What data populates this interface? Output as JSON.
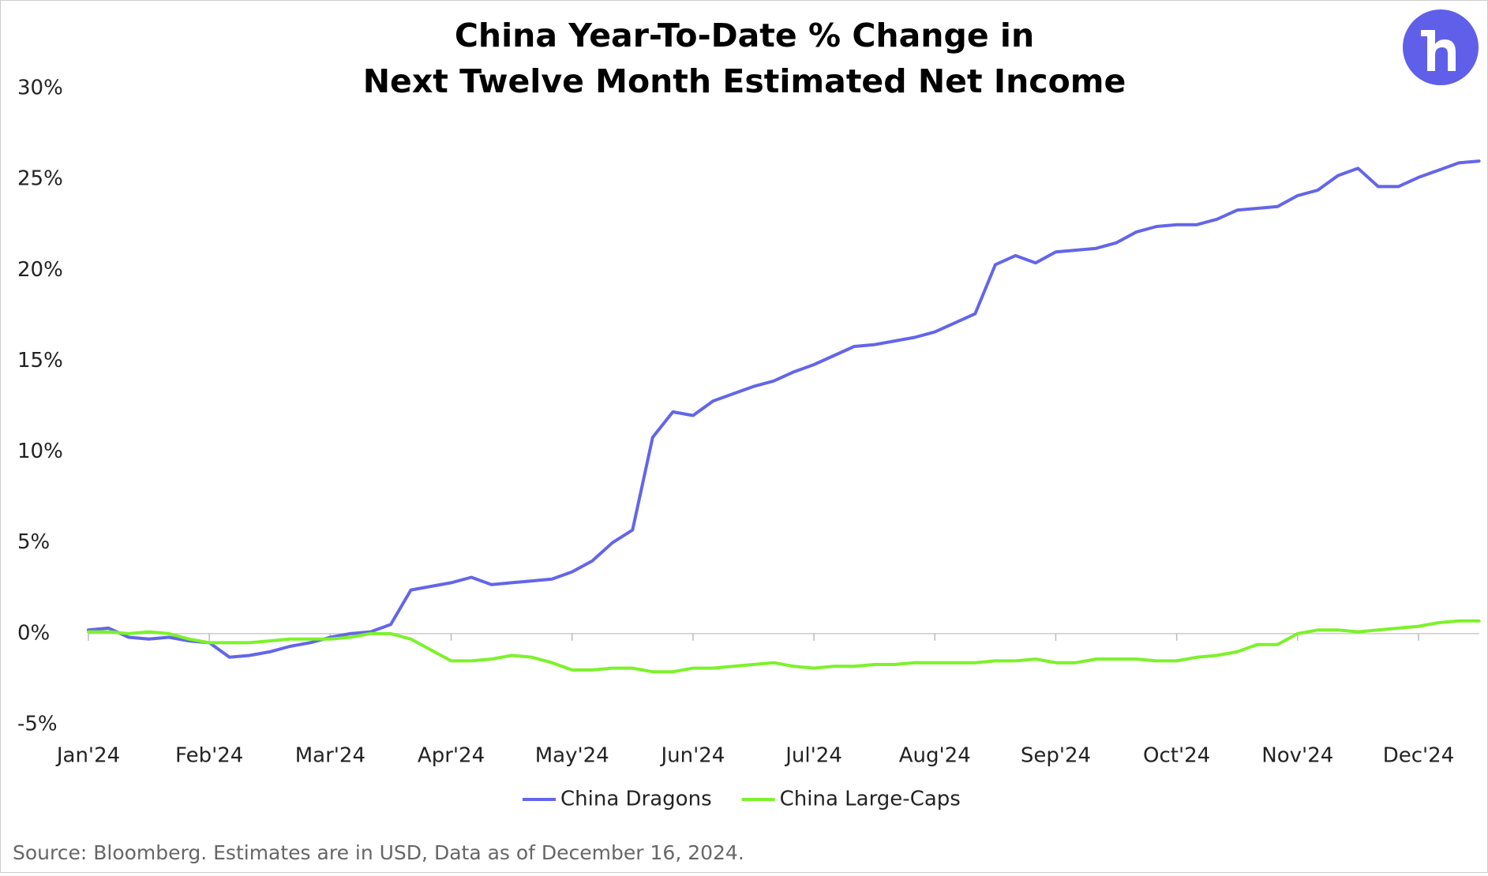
{
  "chart_data": {
    "type": "line",
    "title": [
      "China Year-To-Date % Change in",
      "Next Twelve Month Estimated Net Income"
    ],
    "source": "Source: Bloomberg. Estimates are in USD, Data as of December 16, 2024.",
    "categories": [
      "Jan'24",
      null,
      null,
      null,
      null,
      null,
      "Feb'24",
      null,
      null,
      null,
      null,
      null,
      "Mar'24",
      null,
      null,
      null,
      null,
      null,
      "Apr'24",
      null,
      null,
      null,
      null,
      null,
      "May'24",
      null,
      null,
      null,
      null,
      null,
      "Jun'24",
      null,
      null,
      null,
      null,
      null,
      "Jul'24",
      null,
      null,
      null,
      null,
      null,
      "Aug'24",
      null,
      null,
      null,
      null,
      null,
      "Sep'24",
      null,
      null,
      null,
      null,
      null,
      "Oct'24",
      null,
      null,
      null,
      null,
      null,
      "Nov'24",
      null,
      null,
      null,
      null,
      null,
      "Dec'24",
      null,
      null,
      null
    ],
    "series": [
      {
        "name": "China Dragons",
        "color": "#6366e8",
        "values": [
          0.2,
          0.3,
          -0.2,
          -0.3,
          -0.2,
          -0.4,
          -0.5,
          -1.3,
          -1.2,
          -1.0,
          -0.7,
          -0.5,
          -0.2,
          0.0,
          0.1,
          0.5,
          2.4,
          2.6,
          2.8,
          3.1,
          2.7,
          2.8,
          2.9,
          3.0,
          3.4,
          4.0,
          5.0,
          5.7,
          10.8,
          12.2,
          12.0,
          12.8,
          13.2,
          13.6,
          13.9,
          14.4,
          14.8,
          15.3,
          15.8,
          15.9,
          16.1,
          16.3,
          16.6,
          17.1,
          17.6,
          20.3,
          20.8,
          20.4,
          21.0,
          21.1,
          21.2,
          21.5,
          22.1,
          22.4,
          22.5,
          22.5,
          22.8,
          23.3,
          23.4,
          23.5,
          24.1,
          24.4,
          25.2,
          25.6,
          24.6,
          24.6,
          25.1,
          25.5,
          25.9,
          26.0
        ]
      },
      {
        "name": "China Large-Caps",
        "color": "#7cf22a",
        "values": [
          0.1,
          0.1,
          0.0,
          0.1,
          0.0,
          -0.3,
          -0.5,
          -0.5,
          -0.5,
          -0.4,
          -0.3,
          -0.3,
          -0.3,
          -0.2,
          0.0,
          0.0,
          -0.3,
          -0.9,
          -1.5,
          -1.5,
          -1.4,
          -1.2,
          -1.3,
          -1.6,
          -2.0,
          -2.0,
          -1.9,
          -1.9,
          -2.1,
          -2.1,
          -1.9,
          -1.9,
          -1.8,
          -1.7,
          -1.6,
          -1.8,
          -1.9,
          -1.8,
          -1.8,
          -1.7,
          -1.7,
          -1.6,
          -1.6,
          -1.6,
          -1.6,
          -1.5,
          -1.5,
          -1.4,
          -1.6,
          -1.6,
          -1.4,
          -1.4,
          -1.4,
          -1.5,
          -1.5,
          -1.3,
          -1.2,
          -1.0,
          -0.6,
          -0.6,
          0.0,
          0.2,
          0.2,
          0.1,
          0.2,
          0.3,
          0.4,
          0.6,
          0.7,
          0.7
        ]
      }
    ],
    "ylim": [
      -5,
      30
    ],
    "yticks": [
      {
        "value": -5,
        "label": "-5%"
      },
      {
        "value": 0,
        "label": "0%"
      },
      {
        "value": 5,
        "label": "5%"
      },
      {
        "value": 10,
        "label": "10%"
      },
      {
        "value": 15,
        "label": "15%"
      },
      {
        "value": 20,
        "label": "20%"
      },
      {
        "value": 25,
        "label": "25%"
      },
      {
        "value": 30,
        "label": "30%"
      }
    ],
    "grid": false,
    "legend": "bottom"
  }
}
